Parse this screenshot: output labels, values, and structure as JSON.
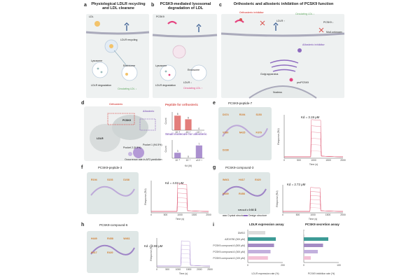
{
  "panels": {
    "a": {
      "letter": "a",
      "title": "Physiological LDLR recycling and LDL clearane",
      "labels": {
        "ldl": "LDL",
        "ldlr_recycling": "LDLR recycling",
        "lysosome": "Lysosome",
        "endosome": "Endosome",
        "ldlr_degradation": "LDLR degradation",
        "circulating": "Circulating LDL ↓"
      }
    },
    "b": {
      "letter": "b",
      "title": "PCSK9-mediated lysosomal degradation of LDL",
      "labels": {
        "pcsk9": "PCSK9",
        "lysosome": "Lysosome",
        "endosome": "Endosome",
        "ldlr_degradation": "LDLR degradation",
        "ldlr_down": "LDLR ↓",
        "circulating": "Circulating LDL ↑"
      }
    },
    "c": {
      "letter": "c",
      "title": "Orthosteric and allosteric inhibition of PCSK9 function",
      "labels": {
        "orthosteric": "Orthosteric inhibitor",
        "circulating": "Circulating LDL ↓",
        "ldlr_up": "LDLR ↑",
        "pcsk9_down": "PCSK9 ↓",
        "moa": "MoA unknown",
        "allosteric": "Allosteric inhibitor",
        "golgi": "Golgi apparatus",
        "propcsk9": "proPCSK9",
        "nucleus": "Nucleus"
      }
    },
    "d": {
      "letter": "d",
      "labels": {
        "orthosteric": "Orthosteric",
        "allosteric": "Allosteric",
        "pcsk9": "PCSK9",
        "ldlr": "LDLR",
        "pocket2": "Pocket 2 (5.5%)",
        "pocket1": "Pocket 1 (94.5%)",
        "occurrence": "Occurrence rate in AF3 prediction",
        "peptide_title": "Peptide for orthosteric",
        "small_title": "Small molecule for allosteric",
        "count": "Count",
        "kd": "Kd (M)"
      },
      "chart_data": [
        {
          "type": "bar",
          "title": "Peptide for orthosteric",
          "ylabel": "Count",
          "categories": [
            "10⁻⁵",
            "10⁻⁴",
            "10⁻³"
          ],
          "values": [
            8,
            6,
            0
          ],
          "value_labels": [
            "8",
            "6",
            "0"
          ],
          "ylim": [
            0,
            10
          ]
        },
        {
          "type": "bar",
          "title": "Small molecule for allosteric",
          "xlabel": "Kd (M)",
          "ylabel": "Count",
          "categories": [
            "10⁻⁵",
            "10⁻⁴",
            "≥10⁻³"
          ],
          "values": [
            3,
            0,
            7
          ],
          "value_labels": [
            "3",
            "0",
            "7"
          ],
          "ylim": [
            0,
            10
          ]
        }
      ]
    },
    "e": {
      "letter": "e",
      "title": "PCSK9-peptide-7",
      "kd": "Kd = 3.19 μM",
      "residues": [
        "D374",
        "R194",
        "S153",
        "V380",
        "N425",
        "F379",
        "D238"
      ],
      "xlabel": "Time (s)",
      "ylabel": "Response (RU)",
      "xticks": [
        "0",
        "500",
        "1000",
        "1500",
        "2000"
      ]
    },
    "f": {
      "letter": "f",
      "title": "PCSK9-peptide-3",
      "kd": "Kd = 4.02 μM",
      "residues": [
        "R194",
        "S153",
        "D238"
      ],
      "xlabel": "Time (s)",
      "ylabel": "Response (RU)",
      "xticks": [
        "0",
        "500",
        "1000",
        "1500",
        "2000"
      ]
    },
    "g": {
      "letter": "g",
      "title": "PCSK9-compound-3",
      "kd": "Kd = 2.72 μM",
      "rmsd": "r.m.s.d = 0.92 Å",
      "residues": [
        "W461",
        "H417",
        "E420",
        "H449",
        "R458"
      ],
      "legend": [
        "Crystal structure",
        "Design structure"
      ],
      "xlabel": "Time (s)",
      "ylabel": "Response (RU)",
      "xticks": [
        "0",
        "500",
        "1000",
        "1500",
        "2000"
      ]
    },
    "h": {
      "letter": "h",
      "title": "PCSK9-compound-6",
      "kd": "Kd = 2.98 μM",
      "residues": [
        "H449",
        "R458",
        "W461",
        "H417",
        "E420"
      ],
      "xlabel": "Time (s)",
      "ylabel": "Response (RU)",
      "xticks": [
        "0",
        "500",
        "1000",
        "1500",
        "2000",
        "2500"
      ]
    },
    "i": {
      "letter": "i",
      "ldlr_title": "LDLR expression assay",
      "pcsk9_title": "PCSK9 secretion assay",
      "rows": [
        "DMSO",
        "AZD0780 (300 μM)",
        "PCSK9-compound-6 (500 μM)",
        "PCSK9-compound-6 (300 μM)",
        "PCSK9-compound-6 (100 μM)"
      ],
      "ldlr_xlabel": "LDLR expression rate (%)",
      "pcsk9_xlabel": "PCSK9 inhibition rate (%)",
      "chart_data": [
        {
          "type": "bar",
          "orientation": "horizontal",
          "title": "LDLR expression assay",
          "categories": [
            "DMSO",
            "AZD0780 (300 μM)",
            "PCSK9-compound-6 (500 μM)",
            "PCSK9-compound-6 (300 μM)",
            "PCSK9-compound-6 (100 μM)"
          ],
          "values": [
            100,
            160,
            150,
            130,
            115
          ],
          "xlim": [
            0,
            200
          ],
          "colors": [
            "#dcdcdc",
            "#3d9b96",
            "#a48bc4",
            "#c2b0dd",
            "#f3c1d6"
          ]
        },
        {
          "type": "bar",
          "orientation": "horizontal",
          "title": "PCSK9 secretion assay",
          "categories": [
            "DMSO",
            "AZD0780 (300 μM)",
            "PCSK9-compound-6 (500 μM)",
            "PCSK9-compound-6 (300 μM)",
            "PCSK9-compound-6 (100 μM)"
          ],
          "values": [
            0,
            70,
            55,
            40,
            20
          ],
          "xlim": [
            0,
            100
          ],
          "colors": [
            "#dcdcdc",
            "#3d9b96",
            "#a48bc4",
            "#c2b0dd",
            "#f3c1d6"
          ]
        }
      ]
    }
  },
  "colors": {
    "orthosteric": "#d9534f",
    "allosteric": "#8e6bbf",
    "green": "#5aa55a",
    "pink": "#e5427f",
    "spr": "#e0607a",
    "spr2": "#b49ad6"
  }
}
